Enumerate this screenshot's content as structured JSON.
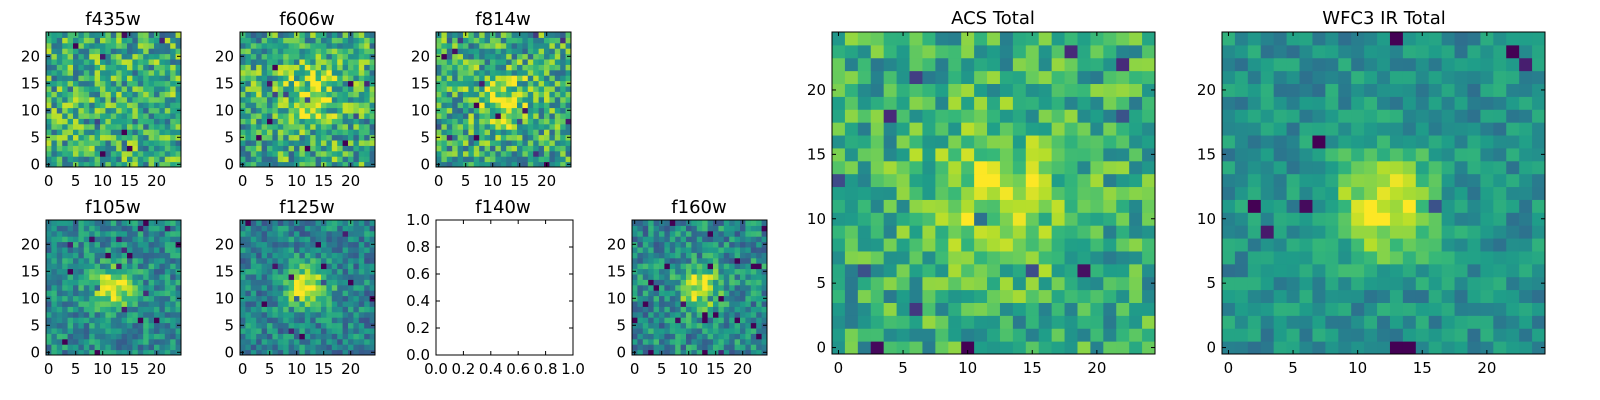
{
  "colormap": "viridis",
  "chart_data": [
    {
      "id": "f435w",
      "type": "heatmap",
      "title": "f435w",
      "empty": false,
      "xlim": [
        -0.5,
        24.5
      ],
      "ylim": [
        -0.5,
        24.5
      ],
      "size": [
        25,
        25
      ],
      "xticks": [
        "0",
        "5",
        "10",
        "15",
        "20"
      ],
      "yticks": [
        "0",
        "5",
        "10",
        "15",
        "20"
      ],
      "pattern": {
        "base": 0.62,
        "noise": 0.3,
        "peak": 0.0,
        "center": [
          12,
          12
        ],
        "sigma": 4,
        "seed": 11
      }
    },
    {
      "id": "f606w",
      "type": "heatmap",
      "title": "f606w",
      "empty": false,
      "xlim": [
        -0.5,
        24.5
      ],
      "ylim": [
        -0.5,
        24.5
      ],
      "size": [
        25,
        25
      ],
      "xticks": [
        "0",
        "5",
        "10",
        "15",
        "20"
      ],
      "yticks": [
        "0",
        "5",
        "10",
        "15",
        "20"
      ],
      "pattern": {
        "base": 0.6,
        "noise": 0.3,
        "peak": 0.25,
        "center": [
          12,
          13
        ],
        "sigma": 4.5,
        "seed": 23
      }
    },
    {
      "id": "f814w",
      "type": "heatmap",
      "title": "f814w",
      "empty": false,
      "xlim": [
        -0.5,
        24.5
      ],
      "ylim": [
        -0.5,
        24.5
      ],
      "size": [
        25,
        25
      ],
      "xticks": [
        "0",
        "5",
        "10",
        "15",
        "20"
      ],
      "yticks": [
        "0",
        "5",
        "10",
        "15",
        "20"
      ],
      "pattern": {
        "base": 0.6,
        "noise": 0.3,
        "peak": 0.3,
        "center": [
          12,
          12
        ],
        "sigma": 3.5,
        "seed": 37
      }
    },
    {
      "id": "f105w",
      "type": "heatmap",
      "title": "f105w",
      "empty": false,
      "xlim": [
        -0.5,
        24.5
      ],
      "ylim": [
        -0.5,
        24.5
      ],
      "size": [
        25,
        25
      ],
      "xticks": [
        "0",
        "5",
        "10",
        "15",
        "20"
      ],
      "yticks": [
        "0",
        "5",
        "10",
        "15",
        "20"
      ],
      "pattern": {
        "base": 0.48,
        "noise": 0.2,
        "peak": 0.5,
        "center": [
          12,
          12
        ],
        "sigma": 2.6,
        "seed": 41
      }
    },
    {
      "id": "f125w",
      "type": "heatmap",
      "title": "f125w",
      "empty": false,
      "xlim": [
        -0.5,
        24.5
      ],
      "ylim": [
        -0.5,
        24.5
      ],
      "size": [
        25,
        25
      ],
      "xticks": [
        "0",
        "5",
        "10",
        "15",
        "20"
      ],
      "yticks": [
        "0",
        "5",
        "10",
        "15",
        "20"
      ],
      "pattern": {
        "base": 0.45,
        "noise": 0.2,
        "peak": 0.55,
        "center": [
          12,
          12
        ],
        "sigma": 2.8,
        "seed": 53
      }
    },
    {
      "id": "f140w",
      "type": "empty",
      "title": "f140w",
      "empty": true,
      "xlim": [
        0.0,
        1.0
      ],
      "ylim": [
        0.0,
        1.0
      ],
      "xticks": [
        "0.0",
        "0.2",
        "0.4",
        "0.6",
        "0.8",
        "1.0"
      ],
      "yticks": [
        "0.0",
        "0.2",
        "0.4",
        "0.6",
        "0.8",
        "1.0"
      ]
    },
    {
      "id": "f160w",
      "type": "heatmap",
      "title": "f160w",
      "empty": false,
      "xlim": [
        -0.5,
        24.5
      ],
      "ylim": [
        -0.5,
        24.5
      ],
      "size": [
        25,
        25
      ],
      "xticks": [
        "0",
        "5",
        "10",
        "15",
        "20"
      ],
      "yticks": [
        "0",
        "5",
        "10",
        "15",
        "20"
      ],
      "pattern": {
        "base": 0.48,
        "noise": 0.22,
        "peak": 0.5,
        "center": [
          12,
          12
        ],
        "sigma": 2.6,
        "seed": 67
      }
    },
    {
      "id": "acs-total",
      "type": "heatmap",
      "title": "ACS Total",
      "empty": false,
      "xlim": [
        -0.5,
        24.5
      ],
      "ylim": [
        -0.5,
        24.5
      ],
      "size": [
        25,
        25
      ],
      "xticks": [
        "0",
        "5",
        "10",
        "15",
        "20"
      ],
      "yticks": [
        "0",
        "5",
        "10",
        "15",
        "20"
      ],
      "pattern": {
        "base": 0.62,
        "noise": 0.22,
        "peak": 0.28,
        "center": [
          12,
          12
        ],
        "sigma": 3.8,
        "seed": 79
      }
    },
    {
      "id": "wfc3-ir-total",
      "type": "heatmap",
      "title": "WFC3 IR Total",
      "empty": false,
      "xlim": [
        -0.5,
        24.5
      ],
      "ylim": [
        -0.5,
        24.5
      ],
      "size": [
        25,
        25
      ],
      "xticks": [
        "0",
        "5",
        "10",
        "15",
        "20"
      ],
      "yticks": [
        "0",
        "5",
        "10",
        "15",
        "20"
      ],
      "pattern": {
        "base": 0.5,
        "noise": 0.14,
        "peak": 0.5,
        "center": [
          12,
          11
        ],
        "sigma": 2.8,
        "seed": 97
      }
    }
  ]
}
